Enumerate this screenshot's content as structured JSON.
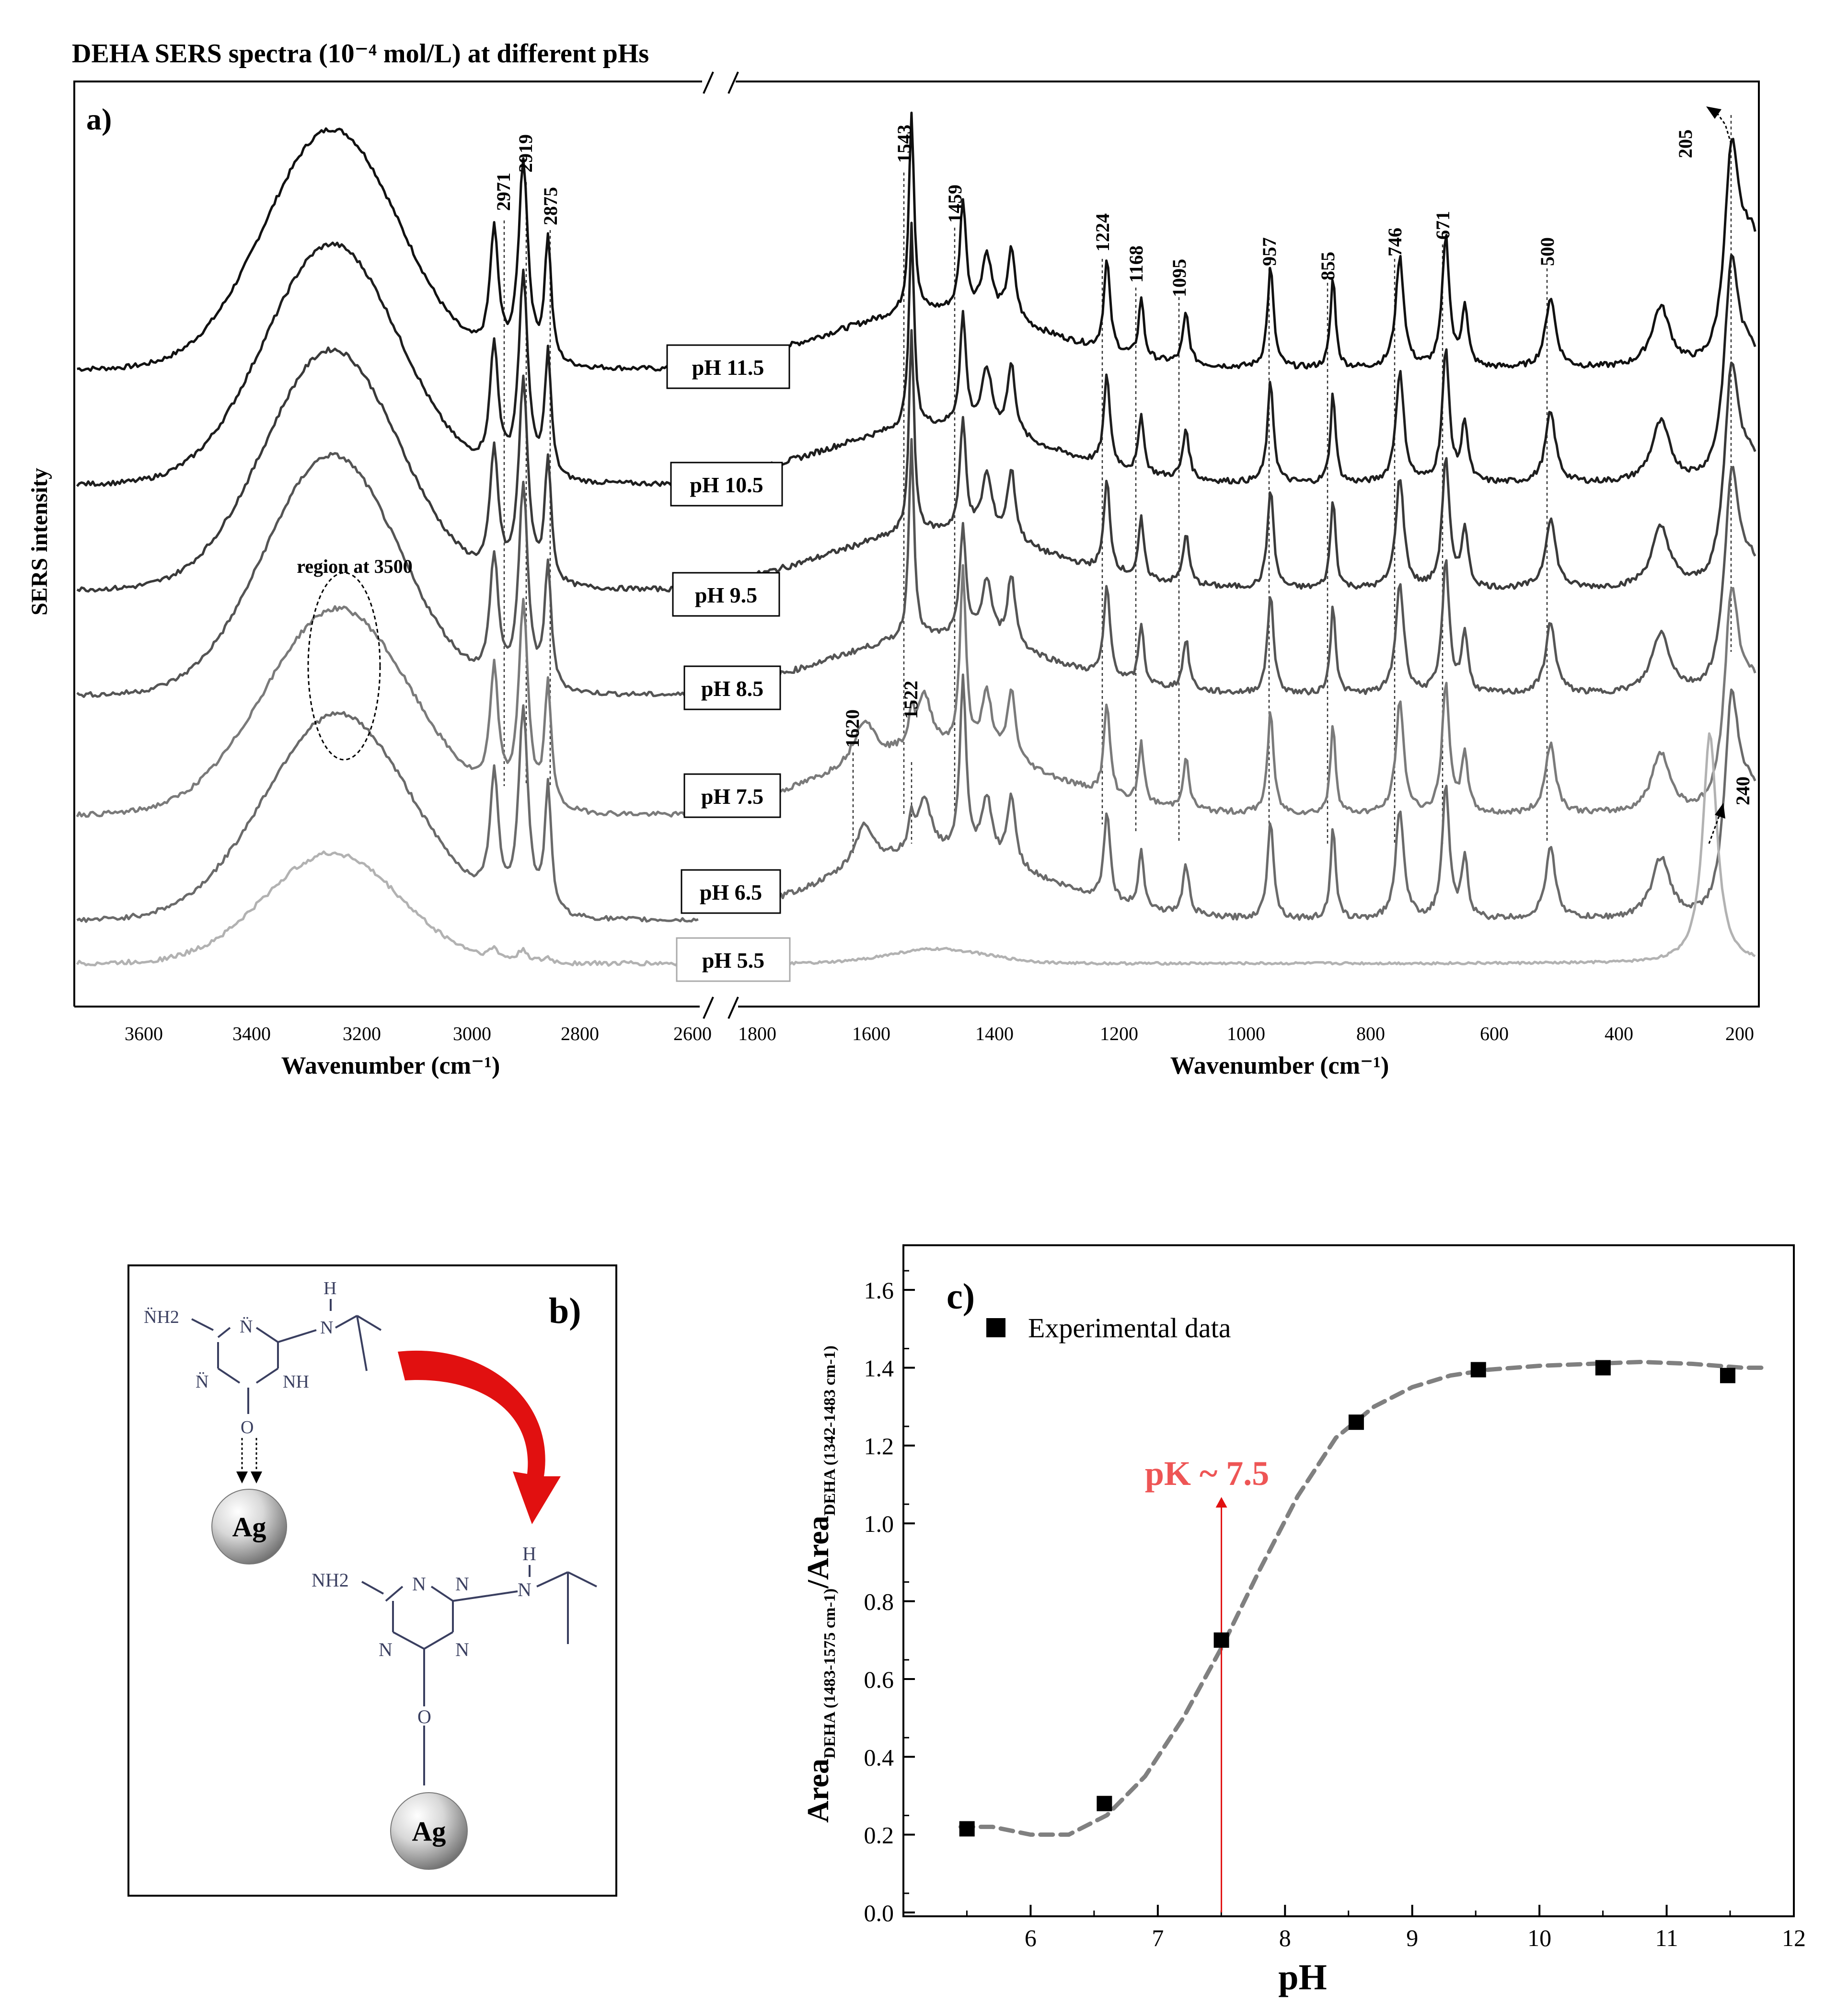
{
  "figure_title": "DEHA SERS spectra (10⁻⁴ mol/L) at different pHs",
  "panel_a": {
    "label": "a)",
    "ylabel": "SERS intensity",
    "xlabel_left": "Wavenumber (cm⁻¹)",
    "xlabel_right": "Wavenumber (cm⁻¹)",
    "ticks_left": [
      "3600",
      "3400",
      "3200",
      "3000",
      "2800",
      "2600"
    ],
    "ticks_right": [
      "1800",
      "1600",
      "1400",
      "1200",
      "1000",
      "800",
      "600",
      "400",
      "200"
    ],
    "region_label": "region at 3500",
    "ph_labels": [
      "pH 11.5",
      "pH 10.5",
      "pH 9.5",
      "pH 8.5",
      "pH 7.5",
      "pH 6.5",
      "pH 5.5"
    ],
    "peak_labels_left": [
      "2971",
      "2919",
      "2875"
    ],
    "peak_labels_right": [
      "1543",
      "1459",
      "1224",
      "1168",
      "1095",
      "957",
      "855",
      "746",
      "671",
      "500",
      "205"
    ],
    "peak_labels_low": [
      "1620",
      "1522",
      "240"
    ]
  },
  "panel_b": {
    "label": "b)",
    "molecule_top": {
      "amine": "N̈H2",
      "h": "H",
      "n": "N",
      "n_ring_a": "N̈",
      "n_ring_b": "N̈",
      "nh": "NH",
      "o": "O"
    },
    "ag_top": "Ag",
    "molecule_bottom": {
      "amine": "NH2",
      "h": "H",
      "n": "N",
      "n_ring_a": "N",
      "n_ring_b": "N",
      "n_ring_c": "N",
      "n_ring_d": "N",
      "o": "O"
    },
    "ag_bottom": "Ag"
  },
  "chart_data": [
    {
      "type": "line",
      "title": "DEHA SERS spectra (10⁻⁴ mol/L) at different pHs",
      "xlabel": "Wavenumber (cm⁻¹)",
      "ylabel": "SERS intensity",
      "x_ranges": [
        [
          3720,
          2600
        ],
        [
          1830,
          160
        ]
      ],
      "series": [
        {
          "name": "pH 11.5"
        },
        {
          "name": "pH 10.5"
        },
        {
          "name": "pH 9.5"
        },
        {
          "name": "pH 8.5"
        },
        {
          "name": "pH 7.5"
        },
        {
          "name": "pH 6.5"
        },
        {
          "name": "pH 5.5"
        }
      ],
      "peaks": [
        2971,
        2919,
        2875,
        1620,
        1543,
        1522,
        1459,
        1224,
        1168,
        1095,
        957,
        855,
        746,
        671,
        500,
        240,
        205
      ]
    },
    {
      "type": "scatter",
      "label": "c)",
      "xlabel": "pH",
      "ylabel_parts": [
        "Area",
        "DEHA (1483-1575 cm-1)",
        "/Area",
        "DEHA (1342-1483 cm-1)"
      ],
      "xlim": [
        5,
        12
      ],
      "ylim": [
        0,
        1.7
      ],
      "xticks": [
        "6",
        "7",
        "8",
        "9",
        "10",
        "11",
        "12"
      ],
      "yticks": [
        "0.0",
        "0.2",
        "0.4",
        "0.6",
        "0.8",
        "1.0",
        "1.2",
        "1.4",
        "1.6"
      ],
      "legend": "Experimental  data",
      "annotation": "pK ~ 7.5",
      "annotation_x": 7.5,
      "series": [
        {
          "name": "Experimental  data",
          "x": [
            5.5,
            6.58,
            7.5,
            8.56,
            9.52,
            10.5,
            11.48
          ],
          "y": [
            0.215,
            0.28,
            0.7,
            1.26,
            1.395,
            1.4,
            1.38
          ]
        }
      ],
      "fit": {
        "style": "dashed",
        "x": [
          5.45,
          5.7,
          6.0,
          6.3,
          6.6,
          6.9,
          7.2,
          7.5,
          7.8,
          8.1,
          8.4,
          8.7,
          9.0,
          9.3,
          9.6,
          10.0,
          10.4,
          10.8,
          11.2,
          11.6,
          11.8
        ],
        "y": [
          0.22,
          0.22,
          0.2,
          0.2,
          0.25,
          0.35,
          0.5,
          0.68,
          0.88,
          1.07,
          1.22,
          1.3,
          1.35,
          1.38,
          1.395,
          1.405,
          1.41,
          1.415,
          1.41,
          1.4,
          1.4
        ]
      }
    }
  ],
  "colors": {
    "spectra": [
      "#111111",
      "#1e1e1e",
      "#3a3a3a",
      "#555555",
      "#7a7a7a",
      "#6a6a6a",
      "#b2b2b2"
    ],
    "arrow_red": "#e11010",
    "pk_red": "#ee5555",
    "fit_grey": "#808080"
  }
}
